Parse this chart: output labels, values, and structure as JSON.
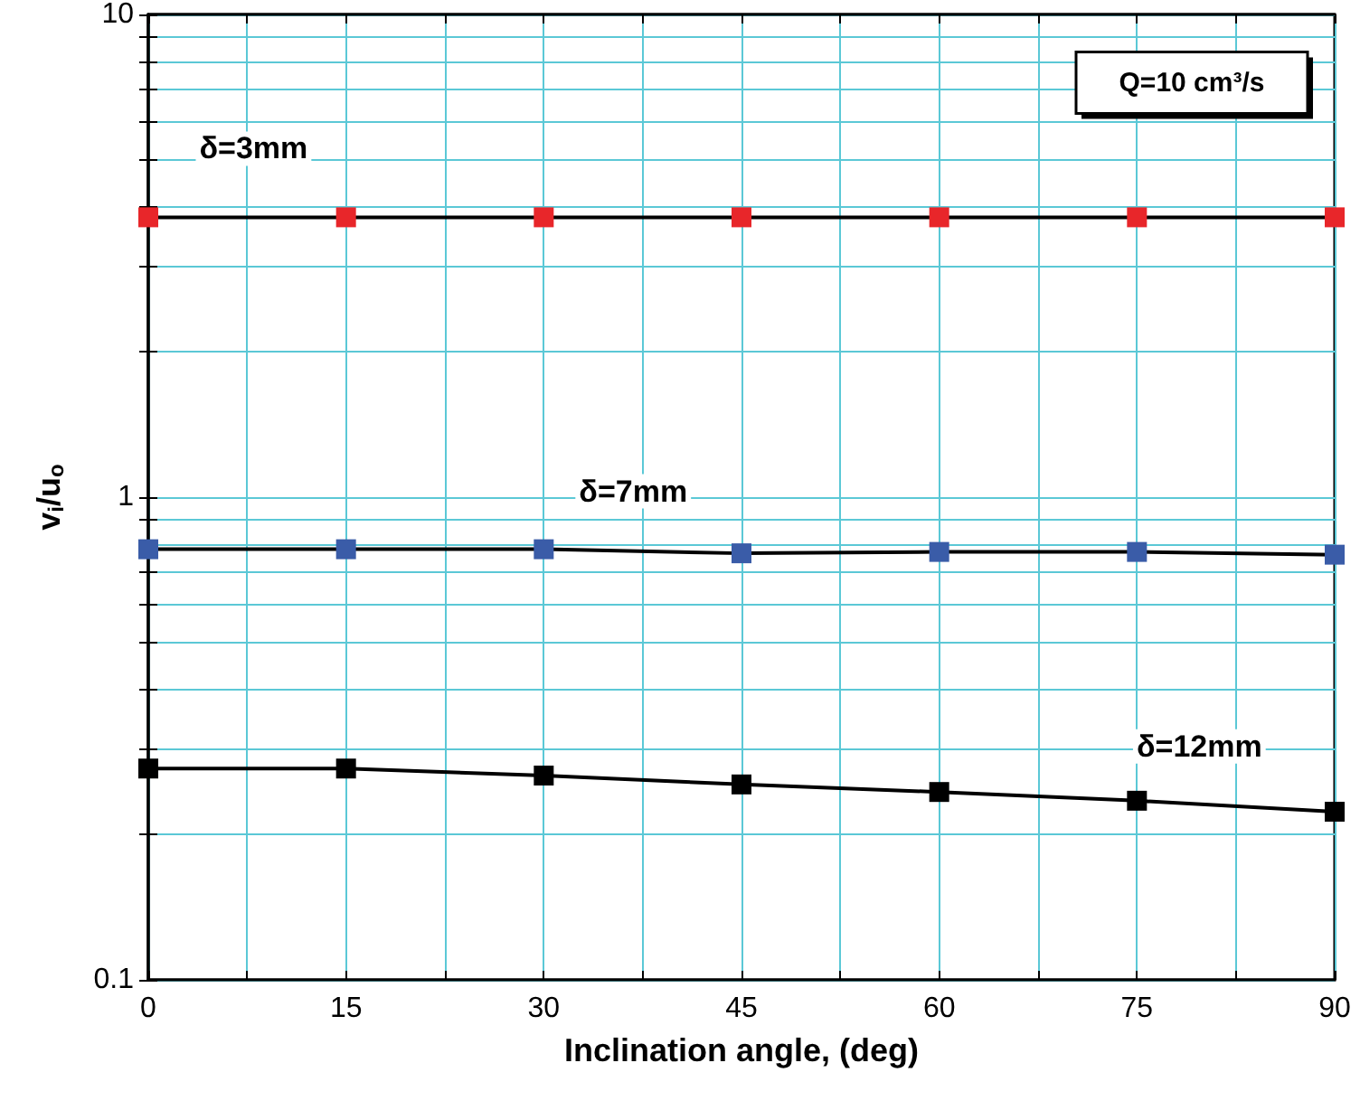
{
  "chart_data": {
    "type": "line",
    "xlabel": "Inclination angle, (deg)",
    "ylabel": "v$_{i}$/u$_{o}$",
    "x": [
      0,
      15,
      30,
      45,
      60,
      75,
      90
    ],
    "series": [
      {
        "name": "δ=3mm",
        "color": "#e8262a",
        "values": [
          3.8,
          3.8,
          3.8,
          3.8,
          3.8,
          3.8,
          3.8
        ]
      },
      {
        "name": "δ=7mm",
        "color": "#3a5ca8",
        "values": [
          0.78,
          0.78,
          0.78,
          0.765,
          0.77,
          0.77,
          0.76
        ]
      },
      {
        "name": "δ=12mm",
        "color": "#000000",
        "values": [
          0.274,
          0.274,
          0.265,
          0.254,
          0.245,
          0.235,
          0.223
        ]
      }
    ],
    "log": "y",
    "xlim": [
      0,
      90
    ],
    "ylim": [
      0.1,
      10
    ],
    "xticks": [
      0,
      {
        "value": 7.5,
        "label": null
      },
      15,
      {
        "value": 22.5,
        "label": null
      },
      30,
      {
        "value": 37.5,
        "label": null
      },
      45,
      {
        "value": 52.5,
        "label": null
      },
      60,
      {
        "value": 67.5,
        "label": null
      },
      75,
      {
        "value": 82.5,
        "label": null
      },
      90
    ],
    "yticks": [
      0.1,
      {
        "value": 0.2,
        "label": null
      },
      {
        "value": 0.3,
        "label": null
      },
      {
        "value": 0.4,
        "label": null
      },
      {
        "value": 0.5,
        "label": null
      },
      {
        "value": 0.6,
        "label": null
      },
      {
        "value": 0.7,
        "label": null
      },
      {
        "value": 0.8,
        "label": null
      },
      {
        "value": 0.9,
        "label": null
      },
      1,
      {
        "value": 2,
        "label": null
      },
      {
        "value": 3,
        "label": null
      },
      {
        "value": 4,
        "label": null
      },
      {
        "value": 5,
        "label": null
      },
      {
        "value": 6,
        "label": null
      },
      {
        "value": 7,
        "label": null
      },
      {
        "value": 8,
        "label": null
      },
      {
        "value": 9,
        "label": null
      },
      10
    ],
    "grid": true,
    "marker": "square",
    "line_style": "solid",
    "annotations": [
      "Q=10 cm³/s"
    ]
  }
}
